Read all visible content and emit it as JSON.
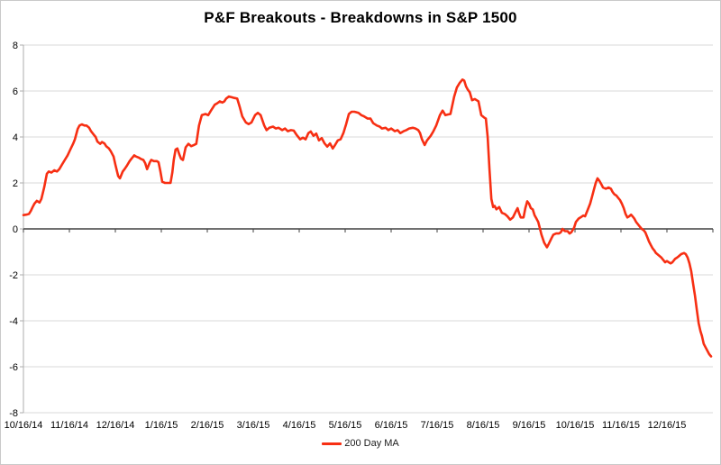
{
  "chart": {
    "title": "P&F Breakouts - Breakdowns in S&P 1500",
    "legend": {
      "label": "200 Day MA"
    }
  },
  "chart_data": {
    "type": "line",
    "title": "P&F Breakouts - Breakdowns in S&P 1500",
    "xlabel": "",
    "ylabel": "",
    "ylim": [
      -8,
      8
    ],
    "x_range": [
      0,
      15
    ],
    "y_ticks": [
      8,
      6,
      4,
      2,
      0,
      -2,
      -4,
      -6,
      -8
    ],
    "x_tick_labels": [
      "10/16/14",
      "11/16/14",
      "12/16/14",
      "1/16/15",
      "2/16/15",
      "3/16/15",
      "4/16/15",
      "5/16/15",
      "6/16/15",
      "7/16/15",
      "8/16/15",
      "9/16/15",
      "10/16/15",
      "11/16/15",
      "12/16/15"
    ],
    "grid": "horizontal",
    "legend_position": "bottom-center",
    "axis_crosses_at": 0,
    "colors": {
      "series": "#f72f13",
      "gridline": "#d9d9d9",
      "zero_axis": "#404040",
      "axis_spine": "#aeaeae",
      "text": "#000000",
      "border": "#c9c9c9",
      "background": "#ffffff"
    },
    "series": [
      {
        "name": "200 Day MA",
        "color": "#f72f13",
        "x_unit": "months since 10/16/14",
        "points": [
          [
            0.0,
            0.6
          ],
          [
            0.06,
            0.62
          ],
          [
            0.12,
            0.65
          ],
          [
            0.16,
            0.78
          ],
          [
            0.2,
            0.95
          ],
          [
            0.24,
            1.1
          ],
          [
            0.29,
            1.22
          ],
          [
            0.35,
            1.15
          ],
          [
            0.39,
            1.3
          ],
          [
            0.45,
            1.8
          ],
          [
            0.51,
            2.4
          ],
          [
            0.55,
            2.5
          ],
          [
            0.61,
            2.45
          ],
          [
            0.67,
            2.55
          ],
          [
            0.73,
            2.5
          ],
          [
            0.78,
            2.6
          ],
          [
            0.84,
            2.8
          ],
          [
            0.9,
            3.0
          ],
          [
            0.96,
            3.2
          ],
          [
            1.02,
            3.45
          ],
          [
            1.08,
            3.7
          ],
          [
            1.12,
            3.9
          ],
          [
            1.18,
            4.35
          ],
          [
            1.22,
            4.5
          ],
          [
            1.27,
            4.55
          ],
          [
            1.33,
            4.5
          ],
          [
            1.37,
            4.5
          ],
          [
            1.43,
            4.4
          ],
          [
            1.47,
            4.25
          ],
          [
            1.53,
            4.1
          ],
          [
            1.57,
            4.0
          ],
          [
            1.61,
            3.8
          ],
          [
            1.67,
            3.7
          ],
          [
            1.71,
            3.78
          ],
          [
            1.76,
            3.72
          ],
          [
            1.8,
            3.6
          ],
          [
            1.86,
            3.5
          ],
          [
            1.9,
            3.38
          ],
          [
            1.96,
            3.15
          ],
          [
            2.0,
            2.8
          ],
          [
            2.06,
            2.3
          ],
          [
            2.1,
            2.2
          ],
          [
            2.16,
            2.5
          ],
          [
            2.2,
            2.6
          ],
          [
            2.25,
            2.75
          ],
          [
            2.31,
            2.95
          ],
          [
            2.35,
            3.05
          ],
          [
            2.41,
            3.2
          ],
          [
            2.45,
            3.15
          ],
          [
            2.51,
            3.1
          ],
          [
            2.55,
            3.05
          ],
          [
            2.61,
            3.0
          ],
          [
            2.65,
            2.85
          ],
          [
            2.69,
            2.6
          ],
          [
            2.75,
            2.9
          ],
          [
            2.78,
            3.0
          ],
          [
            2.84,
            2.95
          ],
          [
            2.9,
            2.95
          ],
          [
            2.94,
            2.9
          ],
          [
            2.98,
            2.5
          ],
          [
            3.02,
            2.05
          ],
          [
            3.08,
            2.0
          ],
          [
            3.14,
            2.0
          ],
          [
            3.2,
            2.0
          ],
          [
            3.24,
            2.45
          ],
          [
            3.27,
            3.0
          ],
          [
            3.31,
            3.45
          ],
          [
            3.35,
            3.5
          ],
          [
            3.39,
            3.25
          ],
          [
            3.43,
            3.05
          ],
          [
            3.47,
            3.0
          ],
          [
            3.53,
            3.55
          ],
          [
            3.59,
            3.7
          ],
          [
            3.65,
            3.6
          ],
          [
            3.71,
            3.65
          ],
          [
            3.76,
            3.7
          ],
          [
            3.82,
            4.5
          ],
          [
            3.88,
            4.95
          ],
          [
            3.96,
            5.0
          ],
          [
            4.02,
            4.95
          ],
          [
            4.08,
            5.15
          ],
          [
            4.16,
            5.4
          ],
          [
            4.22,
            5.47
          ],
          [
            4.27,
            5.55
          ],
          [
            4.33,
            5.5
          ],
          [
            4.37,
            5.55
          ],
          [
            4.41,
            5.67
          ],
          [
            4.47,
            5.76
          ],
          [
            4.53,
            5.73
          ],
          [
            4.59,
            5.7
          ],
          [
            4.65,
            5.67
          ],
          [
            4.71,
            5.28
          ],
          [
            4.76,
            4.9
          ],
          [
            4.84,
            4.63
          ],
          [
            4.9,
            4.56
          ],
          [
            4.96,
            4.63
          ],
          [
            5.04,
            4.95
          ],
          [
            5.1,
            5.05
          ],
          [
            5.16,
            4.95
          ],
          [
            5.24,
            4.5
          ],
          [
            5.29,
            4.3
          ],
          [
            5.35,
            4.4
          ],
          [
            5.43,
            4.45
          ],
          [
            5.49,
            4.37
          ],
          [
            5.55,
            4.4
          ],
          [
            5.63,
            4.3
          ],
          [
            5.69,
            4.37
          ],
          [
            5.75,
            4.25
          ],
          [
            5.82,
            4.3
          ],
          [
            5.88,
            4.28
          ],
          [
            5.94,
            4.1
          ],
          [
            6.02,
            3.9
          ],
          [
            6.08,
            3.97
          ],
          [
            6.14,
            3.9
          ],
          [
            6.2,
            4.17
          ],
          [
            6.25,
            4.24
          ],
          [
            6.31,
            4.05
          ],
          [
            6.37,
            4.15
          ],
          [
            6.43,
            3.85
          ],
          [
            6.49,
            3.95
          ],
          [
            6.55,
            3.72
          ],
          [
            6.61,
            3.58
          ],
          [
            6.67,
            3.72
          ],
          [
            6.73,
            3.5
          ],
          [
            6.78,
            3.65
          ],
          [
            6.84,
            3.85
          ],
          [
            6.9,
            3.9
          ],
          [
            6.96,
            4.17
          ],
          [
            7.02,
            4.55
          ],
          [
            7.08,
            5.0
          ],
          [
            7.14,
            5.1
          ],
          [
            7.2,
            5.1
          ],
          [
            7.24,
            5.08
          ],
          [
            7.29,
            5.05
          ],
          [
            7.35,
            4.95
          ],
          [
            7.41,
            4.9
          ],
          [
            7.49,
            4.8
          ],
          [
            7.55,
            4.8
          ],
          [
            7.61,
            4.6
          ],
          [
            7.69,
            4.5
          ],
          [
            7.75,
            4.45
          ],
          [
            7.8,
            4.37
          ],
          [
            7.88,
            4.4
          ],
          [
            7.94,
            4.3
          ],
          [
            8.0,
            4.37
          ],
          [
            8.08,
            4.25
          ],
          [
            8.14,
            4.3
          ],
          [
            8.2,
            4.17
          ],
          [
            8.27,
            4.25
          ],
          [
            8.33,
            4.3
          ],
          [
            8.39,
            4.37
          ],
          [
            8.47,
            4.4
          ],
          [
            8.53,
            4.37
          ],
          [
            8.59,
            4.3
          ],
          [
            8.63,
            4.17
          ],
          [
            8.67,
            3.9
          ],
          [
            8.73,
            3.65
          ],
          [
            8.78,
            3.85
          ],
          [
            8.86,
            4.05
          ],
          [
            8.92,
            4.25
          ],
          [
            8.98,
            4.5
          ],
          [
            9.06,
            4.95
          ],
          [
            9.12,
            5.15
          ],
          [
            9.18,
            4.95
          ],
          [
            9.24,
            4.98
          ],
          [
            9.29,
            5.0
          ],
          [
            9.37,
            5.75
          ],
          [
            9.43,
            6.15
          ],
          [
            9.49,
            6.35
          ],
          [
            9.55,
            6.5
          ],
          [
            9.59,
            6.45
          ],
          [
            9.63,
            6.2
          ],
          [
            9.67,
            6.05
          ],
          [
            9.71,
            5.95
          ],
          [
            9.76,
            5.6
          ],
          [
            9.82,
            5.65
          ],
          [
            9.86,
            5.6
          ],
          [
            9.9,
            5.55
          ],
          [
            9.96,
            4.95
          ],
          [
            10.02,
            4.85
          ],
          [
            10.06,
            4.8
          ],
          [
            10.1,
            4.0
          ],
          [
            10.14,
            2.6
          ],
          [
            10.18,
            1.3
          ],
          [
            10.22,
            0.95
          ],
          [
            10.25,
            1.0
          ],
          [
            10.29,
            0.85
          ],
          [
            10.35,
            0.95
          ],
          [
            10.41,
            0.7
          ],
          [
            10.47,
            0.65
          ],
          [
            10.53,
            0.55
          ],
          [
            10.59,
            0.4
          ],
          [
            10.65,
            0.5
          ],
          [
            10.71,
            0.75
          ],
          [
            10.75,
            0.9
          ],
          [
            10.78,
            0.7
          ],
          [
            10.82,
            0.5
          ],
          [
            10.88,
            0.5
          ],
          [
            10.92,
            0.9
          ],
          [
            10.96,
            1.2
          ],
          [
            11.0,
            1.1
          ],
          [
            11.04,
            0.9
          ],
          [
            11.08,
            0.85
          ],
          [
            11.12,
            0.6
          ],
          [
            11.16,
            0.45
          ],
          [
            11.2,
            0.3
          ],
          [
            11.24,
            0.0
          ],
          [
            11.27,
            -0.25
          ],
          [
            11.33,
            -0.6
          ],
          [
            11.39,
            -0.8
          ],
          [
            11.43,
            -0.65
          ],
          [
            11.49,
            -0.4
          ],
          [
            11.53,
            -0.25
          ],
          [
            11.59,
            -0.2
          ],
          [
            11.65,
            -0.2
          ],
          [
            11.69,
            -0.15
          ],
          [
            11.73,
            0.0
          ],
          [
            11.78,
            -0.1
          ],
          [
            11.84,
            -0.1
          ],
          [
            11.88,
            -0.2
          ],
          [
            11.92,
            -0.15
          ],
          [
            11.98,
            0.05
          ],
          [
            12.02,
            0.3
          ],
          [
            12.08,
            0.45
          ],
          [
            12.12,
            0.5
          ],
          [
            12.18,
            0.58
          ],
          [
            12.22,
            0.55
          ],
          [
            12.27,
            0.8
          ],
          [
            12.33,
            1.1
          ],
          [
            12.37,
            1.4
          ],
          [
            12.41,
            1.7
          ],
          [
            12.45,
            2.0
          ],
          [
            12.49,
            2.2
          ],
          [
            12.53,
            2.1
          ],
          [
            12.57,
            1.95
          ],
          [
            12.61,
            1.8
          ],
          [
            12.67,
            1.75
          ],
          [
            12.73,
            1.8
          ],
          [
            12.78,
            1.75
          ],
          [
            12.82,
            1.6
          ],
          [
            12.86,
            1.5
          ],
          [
            12.9,
            1.45
          ],
          [
            12.94,
            1.35
          ],
          [
            12.98,
            1.25
          ],
          [
            13.02,
            1.1
          ],
          [
            13.06,
            0.9
          ],
          [
            13.1,
            0.65
          ],
          [
            13.14,
            0.5
          ],
          [
            13.18,
            0.55
          ],
          [
            13.22,
            0.62
          ],
          [
            13.25,
            0.55
          ],
          [
            13.29,
            0.45
          ],
          [
            13.33,
            0.3
          ],
          [
            13.37,
            0.2
          ],
          [
            13.41,
            0.1
          ],
          [
            13.45,
            0.0
          ],
          [
            13.49,
            -0.05
          ],
          [
            13.53,
            -0.15
          ],
          [
            13.57,
            -0.35
          ],
          [
            13.61,
            -0.55
          ],
          [
            13.65,
            -0.7
          ],
          [
            13.69,
            -0.85
          ],
          [
            13.73,
            -0.95
          ],
          [
            13.76,
            -1.05
          ],
          [
            13.82,
            -1.15
          ],
          [
            13.88,
            -1.25
          ],
          [
            13.92,
            -1.35
          ],
          [
            13.96,
            -1.45
          ],
          [
            14.0,
            -1.4
          ],
          [
            14.04,
            -1.45
          ],
          [
            14.08,
            -1.5
          ],
          [
            14.12,
            -1.45
          ],
          [
            14.18,
            -1.3
          ],
          [
            14.22,
            -1.25
          ],
          [
            14.25,
            -1.2
          ],
          [
            14.31,
            -1.1
          ],
          [
            14.37,
            -1.05
          ],
          [
            14.41,
            -1.1
          ],
          [
            14.45,
            -1.25
          ],
          [
            14.49,
            -1.5
          ],
          [
            14.53,
            -1.85
          ],
          [
            14.57,
            -2.4
          ],
          [
            14.61,
            -2.9
          ],
          [
            14.65,
            -3.5
          ],
          [
            14.69,
            -4.1
          ],
          [
            14.73,
            -4.45
          ],
          [
            14.76,
            -4.65
          ],
          [
            14.8,
            -5.0
          ],
          [
            14.84,
            -5.15
          ],
          [
            14.88,
            -5.3
          ],
          [
            14.92,
            -5.45
          ],
          [
            14.96,
            -5.55
          ]
        ]
      }
    ]
  }
}
